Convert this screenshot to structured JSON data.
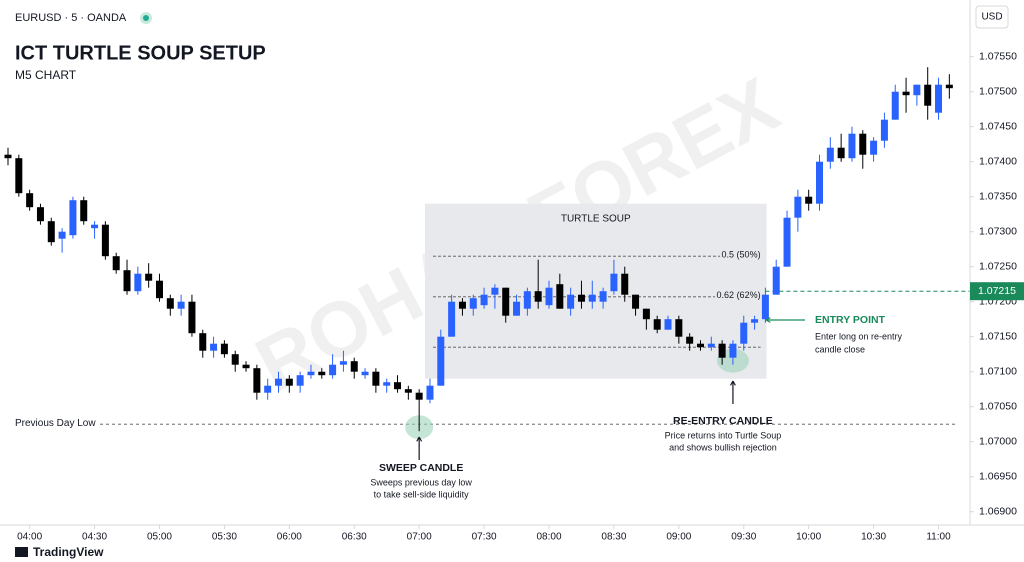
{
  "chart_data": {
    "type": "candlestick",
    "symbol": "EURUSD · 5 · OANDA",
    "title": "ICT TURTLE SOUP SETUP",
    "subtitle": "M5 CHART",
    "currency": "USD",
    "watermark": "ROHAN FOREX",
    "brand": "TradingView",
    "up_color": "#2962ff",
    "down_color": "#000000",
    "x": [
      "03:50",
      "03:55",
      "04:00",
      "04:05",
      "04:10",
      "04:15",
      "04:20",
      "04:25",
      "04:30",
      "04:35",
      "04:40",
      "04:45",
      "04:50",
      "04:55",
      "05:00",
      "05:05",
      "05:10",
      "05:15",
      "05:20",
      "05:25",
      "05:30",
      "05:35",
      "05:40",
      "05:45",
      "05:50",
      "05:55",
      "06:00",
      "06:05",
      "06:10",
      "06:15",
      "06:20",
      "06:25",
      "06:30",
      "06:35",
      "06:40",
      "06:45",
      "06:50",
      "06:55",
      "07:00",
      "07:05",
      "07:10",
      "07:15",
      "07:20",
      "07:25",
      "07:30",
      "07:35",
      "07:40",
      "07:45",
      "07:50",
      "07:55",
      "08:00",
      "08:05",
      "08:10",
      "08:15",
      "08:20",
      "08:25",
      "08:30",
      "08:35",
      "08:40",
      "08:45",
      "08:50",
      "08:55",
      "09:00",
      "09:05",
      "09:10",
      "09:15",
      "09:20",
      "09:25",
      "09:30",
      "09:35",
      "09:40",
      "09:45",
      "09:50",
      "09:55",
      "10:00",
      "10:05",
      "10:10",
      "10:15",
      "10:20",
      "10:25",
      "10:30",
      "10:35",
      "10:40",
      "10:45",
      "10:50",
      "10:55",
      "11:00",
      "11:05"
    ],
    "open": [
      1.0741,
      1.07405,
      1.07355,
      1.07335,
      1.07315,
      1.0729,
      1.07295,
      1.07345,
      1.07305,
      1.0731,
      1.07265,
      1.07245,
      1.07215,
      1.0724,
      1.0723,
      1.07205,
      1.0719,
      1.072,
      1.07155,
      1.0713,
      1.0714,
      1.07125,
      1.0711,
      1.07105,
      1.0707,
      1.0708,
      1.0709,
      1.0708,
      1.07095,
      1.071,
      1.07095,
      1.0711,
      1.07115,
      1.07095,
      1.071,
      1.0708,
      1.07085,
      1.07075,
      1.0707,
      1.0706,
      1.0708,
      1.0715,
      1.072,
      1.0719,
      1.07195,
      1.0721,
      1.0722,
      1.0718,
      1.0719,
      1.07215,
      1.07195,
      1.07225,
      1.0719,
      1.0721,
      1.072,
      1.072,
      1.07215,
      1.0724,
      1.0721,
      1.0719,
      1.07175,
      1.0716,
      1.07175,
      1.0715,
      1.0714,
      1.07135,
      1.0714,
      1.0712,
      1.0714,
      1.0717,
      1.07175,
      1.0721,
      1.0725,
      1.0732,
      1.0735,
      1.0734,
      1.074,
      1.0742,
      1.07405,
      1.0744,
      1.0741,
      1.0743,
      1.0746,
      1.075,
      1.07495,
      1.0751,
      1.0747,
      1.0751
    ],
    "high": [
      1.0742,
      1.0741,
      1.0736,
      1.0734,
      1.0732,
      1.07305,
      1.0735,
      1.0735,
      1.07315,
      1.07315,
      1.0727,
      1.0726,
      1.0725,
      1.07255,
      1.0724,
      1.0721,
      1.0721,
      1.0721,
      1.0716,
      1.0715,
      1.07145,
      1.0713,
      1.07115,
      1.0711,
      1.0709,
      1.071,
      1.07095,
      1.071,
      1.0711,
      1.07105,
      1.07125,
      1.0713,
      1.0712,
      1.07105,
      1.07105,
      1.0709,
      1.07095,
      1.0708,
      1.07075,
      1.0709,
      1.0716,
      1.0721,
      1.07205,
      1.0721,
      1.0722,
      1.07225,
      1.0722,
      1.0721,
      1.0722,
      1.0726,
      1.0723,
      1.0724,
      1.0722,
      1.0723,
      1.0723,
      1.0722,
      1.0726,
      1.0725,
      1.0721,
      1.0719,
      1.0718,
      1.0718,
      1.0718,
      1.07155,
      1.07145,
      1.0715,
      1.07145,
      1.07145,
      1.0718,
      1.0718,
      1.0722,
      1.0726,
      1.0733,
      1.0736,
      1.0736,
      1.0741,
      1.07435,
      1.0744,
      1.0745,
      1.07445,
      1.07435,
      1.0747,
      1.0751,
      1.0752,
      1.0751,
      1.07535,
      1.0752,
      1.07525
    ],
    "low": [
      1.07395,
      1.0735,
      1.0733,
      1.0731,
      1.0728,
      1.0727,
      1.0729,
      1.0731,
      1.0729,
      1.0726,
      1.0724,
      1.0721,
      1.0721,
      1.0722,
      1.072,
      1.0718,
      1.0718,
      1.0715,
      1.0712,
      1.0712,
      1.0712,
      1.071,
      1.071,
      1.0706,
      1.0706,
      1.0707,
      1.0707,
      1.0707,
      1.0709,
      1.0709,
      1.0709,
      1.071,
      1.0709,
      1.0709,
      1.0707,
      1.0707,
      1.0707,
      1.0706,
      1.07015,
      1.07055,
      1.0708,
      1.0715,
      1.0718,
      1.0718,
      1.0719,
      1.0719,
      1.0717,
      1.0718,
      1.0718,
      1.0719,
      1.0719,
      1.0719,
      1.0718,
      1.0719,
      1.0719,
      1.0719,
      1.0721,
      1.072,
      1.0718,
      1.0716,
      1.07155,
      1.0716,
      1.0714,
      1.0713,
      1.0713,
      1.0713,
      1.0711,
      1.0711,
      1.0713,
      1.0716,
      1.0717,
      1.0721,
      1.0725,
      1.073,
      1.0733,
      1.0733,
      1.0739,
      1.074,
      1.074,
      1.0739,
      1.074,
      1.0742,
      1.0746,
      1.0747,
      1.0748,
      1.0746,
      1.0746,
      1.0749
    ],
    "close": [
      1.07405,
      1.07355,
      1.07335,
      1.07315,
      1.07285,
      1.073,
      1.07345,
      1.07315,
      1.0731,
      1.07265,
      1.07245,
      1.07215,
      1.0724,
      1.0723,
      1.07205,
      1.0719,
      1.072,
      1.07155,
      1.0713,
      1.0714,
      1.07125,
      1.0711,
      1.07105,
      1.0707,
      1.0708,
      1.0709,
      1.0708,
      1.07095,
      1.071,
      1.07095,
      1.0711,
      1.07115,
      1.071,
      1.071,
      1.0708,
      1.07085,
      1.07075,
      1.0707,
      1.0706,
      1.0708,
      1.0715,
      1.072,
      1.0719,
      1.07205,
      1.0721,
      1.0722,
      1.0718,
      1.072,
      1.07215,
      1.072,
      1.0722,
      1.0719,
      1.0721,
      1.072,
      1.0721,
      1.07215,
      1.0724,
      1.0721,
      1.0719,
      1.07175,
      1.0716,
      1.07175,
      1.0715,
      1.0714,
      1.07135,
      1.0714,
      1.0712,
      1.0714,
      1.0717,
      1.07175,
      1.0721,
      1.0725,
      1.0732,
      1.0735,
      1.0734,
      1.074,
      1.0742,
      1.07405,
      1.0744,
      1.0741,
      1.0743,
      1.0746,
      1.075,
      1.07495,
      1.0751,
      1.0748,
      1.0751,
      1.07505
    ],
    "ylim": [
      1.06881,
      1.07631
    ],
    "yticks": [
      {
        "value": 1.069,
        "label": "1.06900"
      },
      {
        "value": 1.0695,
        "label": "1.06950"
      },
      {
        "value": 1.07,
        "label": "1.07000"
      },
      {
        "value": 1.0705,
        "label": "1.07050"
      },
      {
        "value": 1.071,
        "label": "1.07100"
      },
      {
        "value": 1.0715,
        "label": "1.07150"
      },
      {
        "value": 1.072,
        "label": "1.07200"
      },
      {
        "value": 1.0725,
        "label": "1.07250"
      },
      {
        "value": 1.073,
        "label": "1.07300"
      },
      {
        "value": 1.0735,
        "label": "1.07350"
      },
      {
        "value": 1.074,
        "label": "1.07400"
      },
      {
        "value": 1.0745,
        "label": "1.07450"
      },
      {
        "value": 1.075,
        "label": "1.07500"
      },
      {
        "value": 1.0755,
        "label": "1.07550"
      }
    ],
    "xticks": [
      "04:00",
      "04:30",
      "05:00",
      "05:30",
      "06:00",
      "06:30",
      "07:00",
      "07:30",
      "08:00",
      "08:30",
      "09:00",
      "09:30",
      "10:00",
      "10:30",
      "11:00"
    ],
    "grid": false,
    "prev_day_low": {
      "label": "Previous Day Low",
      "value": 1.07025
    },
    "turtle_soup": {
      "label": "TURTLE SOUP",
      "top": 1.0734,
      "bottom": 1.0709,
      "start": "07:05",
      "end": "09:35",
      "levels": [
        {
          "label": "0.5 (50%)",
          "value": 1.07265
        },
        {
          "label": "0.62 (62%)",
          "value": 1.07207
        },
        {
          "value": 1.07135
        }
      ]
    },
    "sweep": {
      "title": "SWEEP CANDLE",
      "text": [
        "Sweeps previous day low",
        "to take sell-side liquidity"
      ],
      "x": "07:00"
    },
    "reentry": {
      "title": "RE-ENTRY CANDLE",
      "text": [
        "Price returns into Turtle Soup",
        "and shows bullish rejection"
      ],
      "x": "09:25"
    },
    "entry": {
      "title": "ENTRY POINT",
      "text": [
        "Enter long on re-entry",
        "candle close"
      ],
      "value": 1.07215,
      "x": "09:40"
    }
  }
}
